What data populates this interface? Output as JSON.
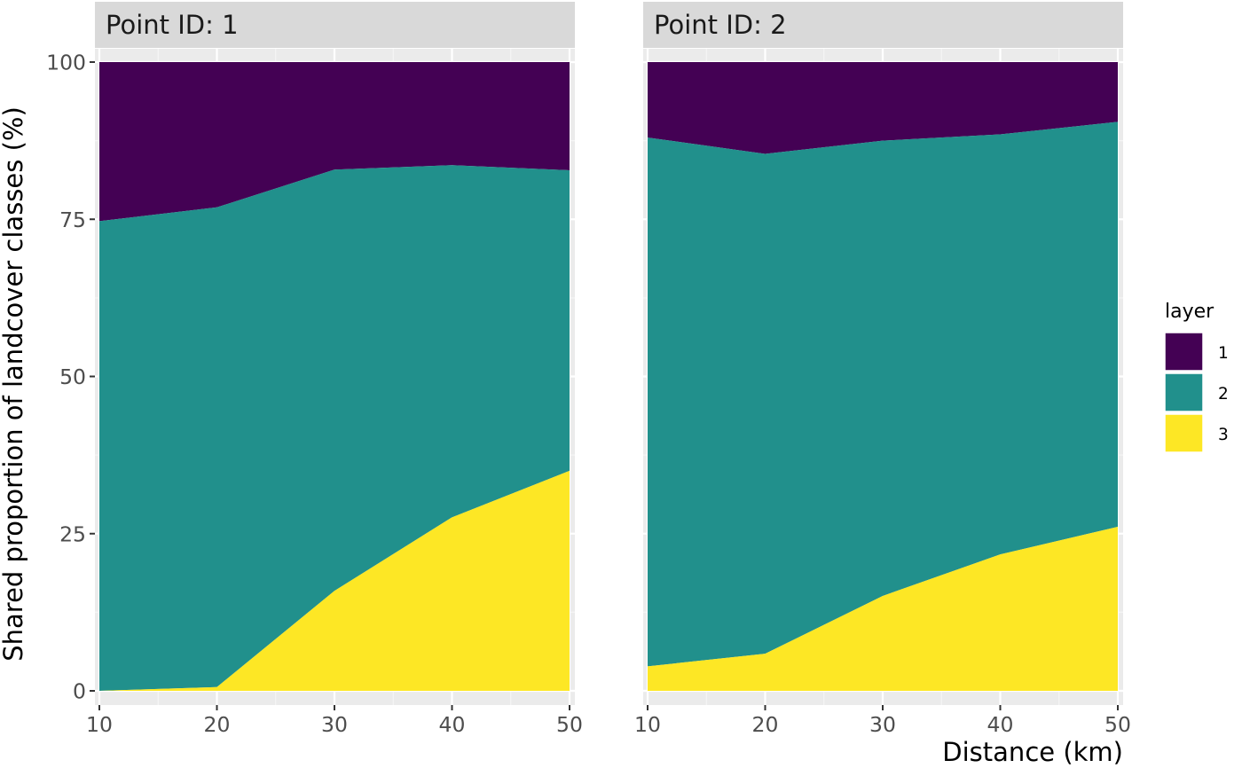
{
  "chart_data": {
    "type": "area",
    "stacked": true,
    "xlabel": "Distance (km)",
    "ylabel": "Shared proportion of landcover classes (%)",
    "xlim": [
      10,
      50
    ],
    "ylim": [
      0,
      100
    ],
    "x_ticks": [
      10,
      20,
      30,
      40,
      50
    ],
    "y_ticks": [
      0,
      25,
      50,
      75,
      100
    ],
    "grid": true,
    "legend": {
      "title": "layer",
      "position": "right",
      "entries": [
        {
          "label": "1",
          "color": "#440154"
        },
        {
          "label": "2",
          "color": "#21908C"
        },
        {
          "label": "3",
          "color": "#FDE725"
        }
      ]
    },
    "panels": [
      {
        "title": "Point ID: 1",
        "x": [
          10,
          20,
          30,
          40,
          50
        ],
        "series": [
          {
            "name": "1",
            "values": [
              25.3,
              23.1,
              17.1,
              16.4,
              17.2
            ]
          },
          {
            "name": "2",
            "values": [
              74.7,
              76.3,
              67.0,
              56.0,
              47.8
            ]
          },
          {
            "name": "3",
            "values": [
              0.0,
              0.6,
              15.9,
              27.6,
              35.0
            ]
          }
        ]
      },
      {
        "title": "Point ID: 2",
        "x": [
          10,
          20,
          30,
          40,
          50
        ],
        "series": [
          {
            "name": "1",
            "values": [
              12.0,
              14.6,
              12.5,
              11.5,
              9.5
            ]
          },
          {
            "name": "2",
            "values": [
              84.1,
              79.5,
              72.4,
              66.8,
              64.4
            ]
          },
          {
            "name": "3",
            "values": [
              3.9,
              5.9,
              15.1,
              21.7,
              26.1
            ]
          }
        ]
      }
    ]
  }
}
